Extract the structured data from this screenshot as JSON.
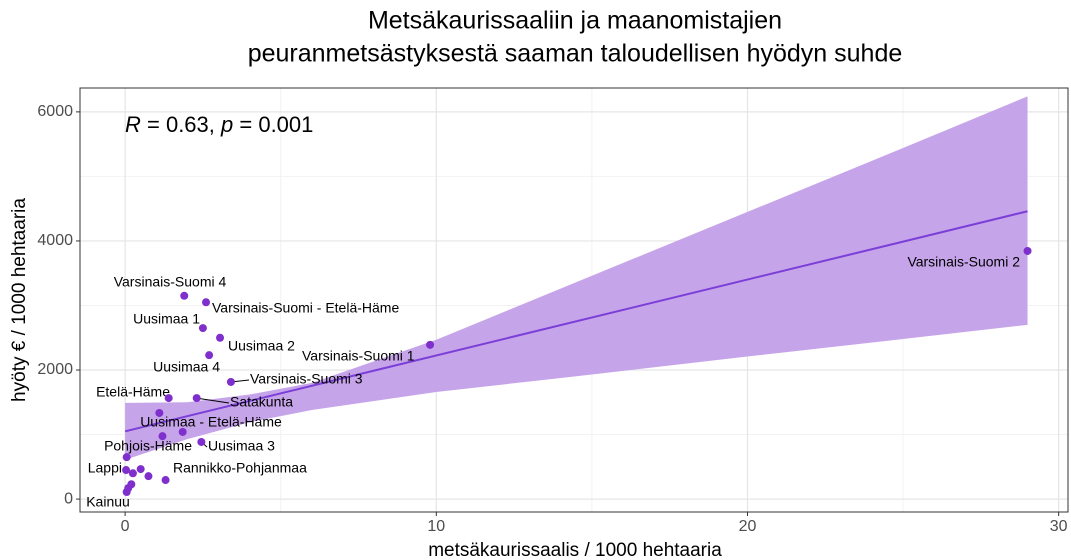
{
  "chart_data": {
    "type": "scatter",
    "title": [
      "Metsäkaurissaaliin ja maanomistajien",
      "peuranmetsästyksestä saaman taloudellisen hyödyn suhde"
    ],
    "x_label": "metsäkaurissaalis / 1000 hehtaaria",
    "y_label": "hyöty € / 1000 hehtaaria",
    "annotation": [
      "R",
      " = 0.63, ",
      "p",
      " = 0.001"
    ],
    "color": "#7e2fcc",
    "fit_color": "#7b3fd8",
    "band_color": "#c6a4ea",
    "grid": true,
    "xlim": [
      -1.45,
      30.3
    ],
    "ylim": [
      -200,
      6370
    ],
    "xticks": [
      0,
      10,
      20,
      30
    ],
    "yticks": [
      0,
      2000,
      4000,
      6000
    ],
    "minor_xticks": [
      5,
      15,
      25
    ],
    "minor_yticks": [
      1000,
      3000,
      5000
    ],
    "x": [
      29.0,
      9.8,
      1.9,
      2.6,
      2.5,
      3.05,
      2.7,
      3.4,
      1.4,
      2.3,
      1.1,
      1.85,
      2.45,
      1.2,
      0.05,
      0.03,
      0.5,
      0.75,
      0.25,
      1.3,
      0.05,
      0.2,
      0.1
    ],
    "values": [
      3845,
      2390,
      3150,
      3050,
      2650,
      2500,
      2230,
      1815,
      1565,
      1565,
      1335,
      1040,
      885,
      975,
      650,
      450,
      465,
      355,
      400,
      295,
      110,
      230,
      170
    ],
    "labels": [
      "Varsinais-Suomi 2",
      "Varsinais-Suomi 1",
      "Varsinais-Suomi 4",
      "Varsinais-Suomi - Etelä-Häme",
      "Uusimaa 1",
      "Uusimaa 2",
      "Uusimaa 4",
      "Varsinais-Suomi 3",
      "Etelä-Häme",
      "Satakunta",
      null,
      "Uusimaa - Etelä-Häme",
      "Uusimaa 3",
      "Pohjois-Häme",
      null,
      "Lappi",
      null,
      null,
      null,
      "Rannikko-Pohjanmaa",
      "Kainuu",
      null,
      null
    ],
    "fit_x": [
      0,
      29
    ],
    "fit_y": [
      1050,
      4460
    ],
    "band_x": [
      0,
      2,
      4,
      6,
      10,
      15,
      20,
      25,
      29
    ],
    "band_upper": [
      1490,
      1500,
      1620,
      1800,
      2470,
      3460,
      4450,
      5440,
      6240
    ],
    "band_lower": [
      610,
      930,
      1190,
      1380,
      1660,
      1930,
      2210,
      2480,
      2700
    ]
  }
}
